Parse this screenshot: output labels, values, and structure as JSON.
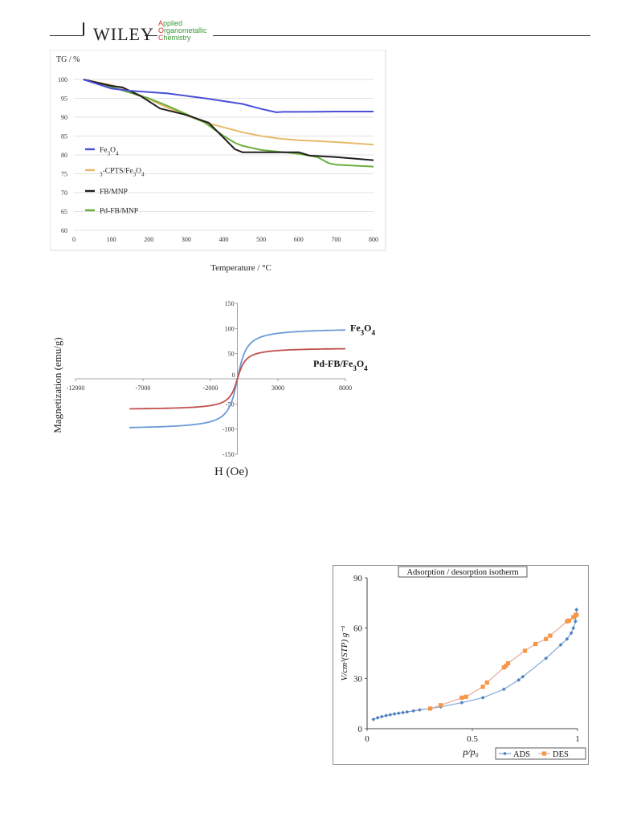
{
  "header": {
    "publisher": "WILEY",
    "journal_line1_cap": "A",
    "journal_line1_rest": "pplied",
    "journal_line2_cap": "O",
    "journal_line2_rest": "rganometallic",
    "journal_line3_cap": "C",
    "journal_line3_rest": "hemistry"
  },
  "chart_data": [
    {
      "type": "line",
      "ylabel": "TG / %",
      "xlabel": "Temperature / °C",
      "xlim": [
        0,
        800
      ],
      "ylim": [
        60,
        100
      ],
      "xticks": [
        0,
        100,
        200,
        300,
        400,
        500,
        600,
        700,
        800
      ],
      "yticks": [
        60,
        65,
        70,
        75,
        80,
        85,
        90,
        95,
        100
      ],
      "grid": "horizontal",
      "legend_position": "left",
      "legend_order": [
        0,
        1,
        2,
        3
      ],
      "series": [
        {
          "name": "Fe3O4",
          "color": "#4a4fd8",
          "x": [
            25,
            100,
            150,
            250,
            350,
            450,
            500,
            540,
            560,
            600,
            700,
            800
          ],
          "y": [
            100,
            97.6,
            97.0,
            96.3,
            95.0,
            93.5,
            92.2,
            91.3,
            91.4,
            91.4,
            91.5,
            91.5
          ]
        },
        {
          "name": "3-CPTS/Fe3O4",
          "color": "#e8b96a",
          "x": [
            25,
            100,
            150,
            200,
            250,
            300,
            350,
            400,
            450,
            500,
            550,
            600,
            700,
            800
          ],
          "y": [
            100,
            98.5,
            97.0,
            94.8,
            92.5,
            90.5,
            88.6,
            87.3,
            86.0,
            85.0,
            84.3,
            83.9,
            83.4,
            82.7
          ]
        },
        {
          "name": "FB/MNP",
          "color": "#1f1f1f",
          "x": [
            25,
            100,
            130,
            180,
            230,
            300,
            360,
            400,
            430,
            450,
            500,
            600,
            630,
            700,
            800
          ],
          "y": [
            100,
            98.3,
            97.9,
            95.5,
            92.3,
            90.6,
            88.5,
            84.5,
            81.5,
            80.7,
            80.7,
            80.7,
            79.8,
            79.4,
            78.6
          ]
        },
        {
          "name": "Pd-FB/MNP",
          "color": "#6aae3e",
          "x": [
            25,
            100,
            150,
            200,
            250,
            300,
            350,
            400,
            430,
            450,
            500,
            550,
            600,
            650,
            680,
            700,
            800
          ],
          "y": [
            100,
            98.0,
            96.5,
            95.0,
            93.0,
            90.8,
            88.5,
            85.0,
            83.2,
            82.4,
            81.3,
            80.8,
            80.3,
            79.4,
            77.8,
            77.4,
            76.9
          ]
        }
      ]
    },
    {
      "type": "line",
      "ylabel": "Magnetization  (emu/g)",
      "xlabel": "H (Oe)",
      "xlim": [
        -12000,
        8000
      ],
      "ylim": [
        -150,
        150
      ],
      "xticks": [
        -12000,
        -7000,
        -2000,
        3000,
        8000
      ],
      "yticks": [
        -150,
        -100,
        -50,
        0,
        50,
        100,
        150
      ],
      "grid": "none",
      "series": [
        {
          "name": "Fe3O4",
          "color": "#6b9bd6",
          "ms": 101,
          "h0": 500,
          "hmin": -8000,
          "hmax": 8000
        },
        {
          "name": "Pd-FB/Fe3O4",
          "color": "#c0504d",
          "ms": 62,
          "h0": 450,
          "hmin": -8000,
          "hmax": 8000
        }
      ]
    },
    {
      "type": "line",
      "title": "Adsorption  / desorption  isotherm",
      "ylabel": "V/cm³(STP) g⁻¹",
      "xlabel": "p/p₀",
      "xlim": [
        0,
        1
      ],
      "ylim": [
        0,
        90
      ],
      "xticks": [
        0,
        0.5,
        1
      ],
      "yticks": [
        0,
        30,
        60,
        90
      ],
      "legend_position": "bottom-right",
      "series": [
        {
          "name": "ADS",
          "color": "#4f81bd",
          "x": [
            0.03,
            0.05,
            0.07,
            0.09,
            0.11,
            0.13,
            0.15,
            0.17,
            0.19,
            0.22,
            0.25,
            0.3,
            0.35,
            0.45,
            0.55,
            0.65,
            0.72,
            0.74,
            0.85,
            0.92,
            0.95,
            0.97,
            0.98,
            0.99,
            0.995
          ],
          "y": [
            5.5,
            6.5,
            7.2,
            7.8,
            8.3,
            8.8,
            9.2,
            9.6,
            10.0,
            10.6,
            11.2,
            12.0,
            13.0,
            15.5,
            18.5,
            23.5,
            29.0,
            31.0,
            42.0,
            50.0,
            53.5,
            57.0,
            60.0,
            64.0,
            71.0
          ]
        },
        {
          "name": "DES",
          "color": "#f79646",
          "x": [
            0.995,
            0.99,
            0.98,
            0.96,
            0.95,
            0.87,
            0.85,
            0.8,
            0.75,
            0.67,
            0.66,
            0.65,
            0.57,
            0.55,
            0.47,
            0.45,
            0.35,
            0.3
          ],
          "y": [
            68.0,
            67.5,
            66.5,
            64.5,
            64.0,
            55.5,
            53.5,
            50.5,
            46.5,
            39.0,
            37.5,
            36.5,
            27.5,
            25.0,
            19.0,
            18.5,
            14.0,
            12.0
          ]
        }
      ]
    }
  ]
}
